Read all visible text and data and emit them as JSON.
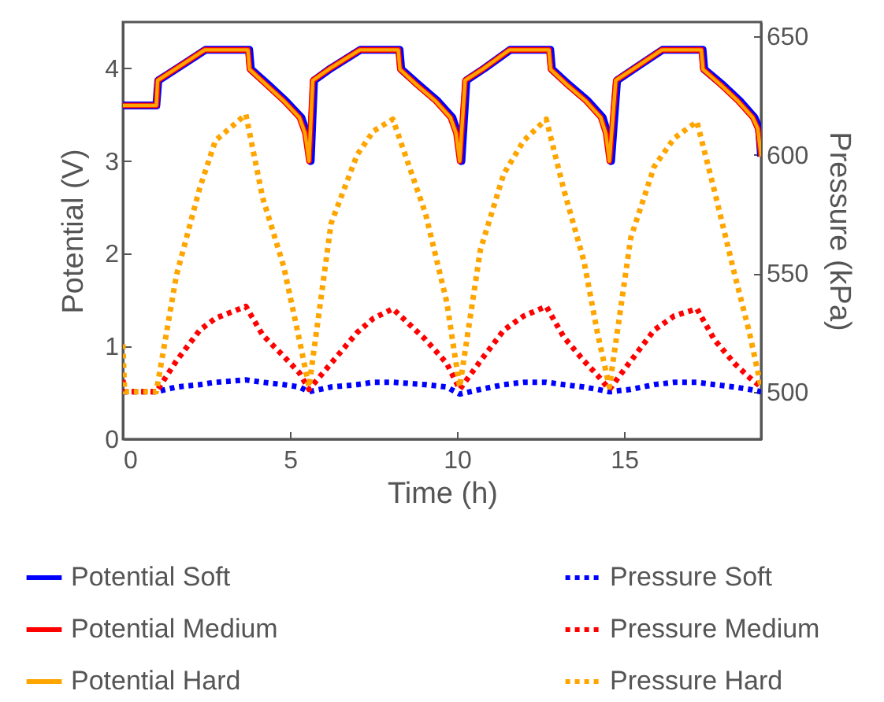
{
  "chart_data": {
    "type": "line",
    "xlabel": "Time (h)",
    "ylabel": "Potential (V)",
    "y2label": "Pressure (kPa)",
    "x": [
      0,
      1.0,
      1.04,
      1.6,
      2.45,
      3.74,
      3.79,
      4.3,
      4.81,
      5.28,
      5.45,
      5.57,
      5.68,
      6.2,
      7.09,
      8.24,
      8.29,
      8.8,
      9.35,
      9.8,
      9.97,
      10.08,
      10.24,
      10.8,
      11.57,
      12.75,
      12.8,
      13.3,
      13.85,
      14.3,
      14.45,
      14.56,
      14.75,
      15.3,
      16.13,
      17.31,
      17.36,
      17.9,
      18.4,
      18.85,
      19.0,
      19.1
    ],
    "series": [
      {
        "name": "Potential Soft",
        "color": "#0000ff",
        "line_style": "solid",
        "x": [
          0,
          1.0,
          1.06,
          1.62,
          2.47,
          3.78,
          3.83,
          4.36,
          4.87,
          5.34,
          5.5,
          5.62,
          5.72,
          6.22,
          7.11,
          8.28,
          8.33,
          8.86,
          9.41,
          9.86,
          10.02,
          10.13,
          10.28,
          10.82,
          11.59,
          12.79,
          12.84,
          13.36,
          13.91,
          14.36,
          14.5,
          14.61,
          14.79,
          15.32,
          16.15,
          17.35,
          17.4,
          17.96,
          18.46,
          18.9,
          19.04,
          19.1
        ],
        "values": [
          3.6,
          3.6,
          3.87,
          4.0,
          4.2,
          4.2,
          3.99,
          3.82,
          3.65,
          3.47,
          3.3,
          3.0,
          3.87,
          4.0,
          4.2,
          4.2,
          3.99,
          3.82,
          3.65,
          3.47,
          3.3,
          3.0,
          3.87,
          4.0,
          4.2,
          4.2,
          3.99,
          3.82,
          3.65,
          3.47,
          3.3,
          3.0,
          3.87,
          4.0,
          4.2,
          4.2,
          3.99,
          3.82,
          3.65,
          3.47,
          3.35,
          3.05
        ]
      },
      {
        "name": "Potential Medium",
        "color": "#ff0000",
        "line_style": "solid",
        "values": [
          3.6,
          3.6,
          3.87,
          4.0,
          4.2,
          4.2,
          3.99,
          3.82,
          3.65,
          3.47,
          3.3,
          3.0,
          3.87,
          4.0,
          4.2,
          4.2,
          3.99,
          3.82,
          3.65,
          3.47,
          3.3,
          3.0,
          3.87,
          4.0,
          4.2,
          4.2,
          3.99,
          3.82,
          3.65,
          3.47,
          3.3,
          3.0,
          3.87,
          4.0,
          4.2,
          4.2,
          3.99,
          3.82,
          3.65,
          3.47,
          3.35,
          3.05
        ]
      },
      {
        "name": "Potential Hard",
        "color": "#ffa500",
        "line_style": "solid",
        "values": [
          3.6,
          3.6,
          3.87,
          4.0,
          4.2,
          4.2,
          3.99,
          3.82,
          3.65,
          3.47,
          3.3,
          3.0,
          3.87,
          4.0,
          4.2,
          4.2,
          3.99,
          3.82,
          3.65,
          3.47,
          3.3,
          3.0,
          3.87,
          4.0,
          4.2,
          4.2,
          3.99,
          3.82,
          3.65,
          3.47,
          3.3,
          3.0,
          3.87,
          4.0,
          4.2,
          4.2,
          3.99,
          3.82,
          3.65,
          3.47,
          3.35,
          3.05
        ]
      },
      {
        "name": "Pressure Soft",
        "color": "#0000ff",
        "line_style": "dotted",
        "axis": "y2",
        "x": [
          0,
          0.05,
          1.0,
          1.6,
          2.3,
          2.77,
          3.68,
          4.18,
          4.81,
          5.28,
          5.57,
          6.23,
          7.01,
          7.5,
          8.08,
          9.06,
          9.69,
          10.08,
          10.7,
          11.4,
          12.0,
          12.67,
          13.2,
          13.8,
          14.2,
          14.56,
          15.2,
          15.9,
          16.5,
          17.18,
          17.7,
          18.3,
          18.75,
          19.1
        ],
        "values": [
          500,
          500,
          500,
          502,
          503,
          504,
          505,
          504,
          503,
          502,
          500,
          502,
          503,
          504,
          504,
          503,
          502,
          499,
          501,
          503,
          504,
          504,
          503,
          502,
          501,
          500,
          501,
          503,
          504,
          504,
          503,
          502,
          501,
          500
        ]
      },
      {
        "name": "Pressure Medium",
        "color": "#ff0000",
        "line_style": "dotted",
        "axis": "y2",
        "x": [
          0,
          0.05,
          1.0,
          1.6,
          2.3,
          2.77,
          3.68,
          4.18,
          4.81,
          5.28,
          5.57,
          6.23,
          7.01,
          7.5,
          8.08,
          9.06,
          9.69,
          10.08,
          10.7,
          11.4,
          12.0,
          12.67,
          13.2,
          13.8,
          14.2,
          14.56,
          15.2,
          15.9,
          16.5,
          17.18,
          17.7,
          18.3,
          18.75,
          19.1
        ],
        "values": [
          505,
          500,
          500,
          513,
          526,
          531,
          536,
          524,
          515,
          508,
          501,
          512,
          525,
          531,
          535,
          522,
          512,
          501,
          513,
          526,
          532,
          536,
          523,
          513,
          507,
          501,
          513,
          526,
          532,
          535,
          522,
          512,
          506,
          502
        ]
      },
      {
        "name": "Pressure Hard",
        "color": "#ffa500",
        "line_style": "dotted",
        "axis": "y2",
        "x": [
          0,
          0.05,
          1.0,
          1.6,
          2.3,
          2.77,
          3.68,
          4.18,
          4.81,
          5.28,
          5.57,
          6.23,
          7.01,
          7.5,
          8.08,
          9.06,
          9.69,
          10.08,
          10.7,
          11.4,
          12.0,
          12.67,
          13.2,
          13.8,
          14.2,
          14.56,
          15.2,
          15.9,
          16.5,
          17.18,
          17.7,
          18.3,
          18.75,
          19.1
        ],
        "values": [
          520,
          500,
          500,
          549,
          586,
          606,
          617,
          582,
          553,
          522,
          502,
          571,
          600,
          610,
          615,
          575,
          538,
          502,
          560,
          592,
          606,
          615,
          585,
          555,
          525,
          502,
          565,
          595,
          607,
          614,
          585,
          550,
          525,
          502
        ]
      }
    ],
    "xlim": [
      0,
      19.1
    ],
    "xticks": [
      0,
      5,
      10,
      15
    ],
    "ylim": [
      0,
      4.5
    ],
    "yticks": [
      0,
      1,
      2,
      3,
      4
    ],
    "y2lim": [
      480,
      656
    ],
    "y2ticks": [
      500,
      550,
      600,
      650
    ],
    "grid": false,
    "legend": "bottom"
  }
}
